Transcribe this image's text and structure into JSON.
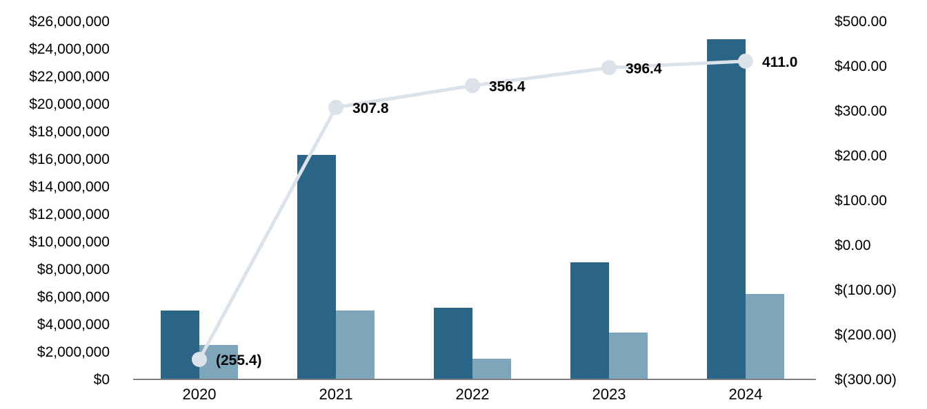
{
  "chart_data": {
    "type": "bar",
    "subtype": "grouped-bar-with-line-combo",
    "title": "",
    "xlabel": "",
    "ylabel_left": "",
    "ylabel_right": "",
    "grid": "off",
    "legend": "none",
    "categories": [
      "2020",
      "2021",
      "2022",
      "2023",
      "2024"
    ],
    "series": [
      {
        "name": "dark-bar-series",
        "type": "bar",
        "axis": "left",
        "color": "#2a6486",
        "values": [
          5000000,
          16300000,
          5200000,
          8500000,
          24700000
        ]
      },
      {
        "name": "light-bar-series",
        "type": "bar",
        "axis": "left",
        "color": "#7ea6ba",
        "values": [
          2500000,
          5000000,
          1500000,
          3400000,
          6200000
        ]
      },
      {
        "name": "line-series",
        "type": "line",
        "axis": "right",
        "color": "#dbe2e9",
        "marker_color": "#dbe2e9",
        "values": [
          -255.4,
          307.8,
          356.4,
          396.4,
          411.0
        ],
        "data_labels": [
          "(255.4)",
          "307.8",
          "356.4",
          "396.4",
          "411.0"
        ]
      }
    ],
    "left_axis": {
      "min": 0,
      "max": 26000000,
      "step": 2000000,
      "tick_labels_top_to_bottom": [
        "$26,000,000",
        "$24,000,000",
        "$22,000,000",
        "$20,000,000",
        "$18,000,000",
        "$16,000,000",
        "$14,000,000",
        "$12,000,000",
        "$10,000,000",
        "$8,000,000",
        "$6,000,000",
        "$4,000,000",
        "$2,000,000",
        "$0"
      ],
      "tick_values_top_to_bottom": [
        26000000,
        24000000,
        22000000,
        20000000,
        18000000,
        16000000,
        14000000,
        12000000,
        10000000,
        8000000,
        6000000,
        4000000,
        2000000,
        0
      ]
    },
    "right_axis": {
      "min": -300,
      "max": 500,
      "step": 100,
      "tick_labels_top_to_bottom": [
        "$500.00",
        "$400.00",
        "$300.00",
        "$200.00",
        "$100.00",
        "$0.00",
        "$(100.00)",
        "$(200.00)",
        "$(300.00)"
      ],
      "tick_values_top_to_bottom": [
        500,
        400,
        300,
        200,
        100,
        0,
        -100,
        -200,
        -300
      ]
    },
    "colors": {
      "axis_line": "#7f7f7f",
      "text": "#000000",
      "background": "#ffffff"
    }
  }
}
